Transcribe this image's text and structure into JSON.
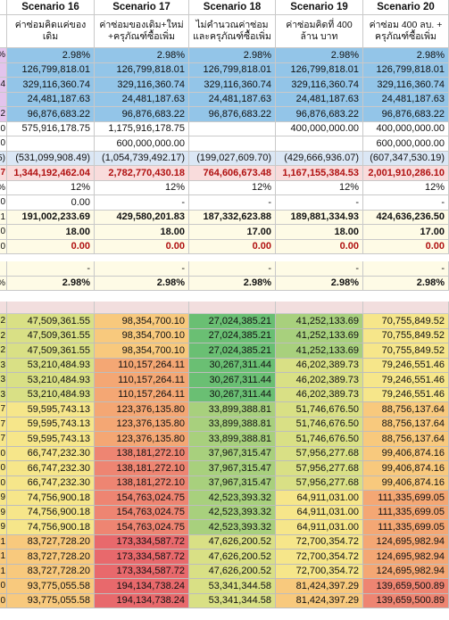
{
  "scenarios": [
    {
      "title": "Scenario 16",
      "subtitle": "ค่าซ่อมคิดแค่ของเดิม"
    },
    {
      "title": "Scenario 17",
      "subtitle": "ค่าซ่อมของเดิม+ใหม่ +ครุภัณฑ์ซื้อเพิ่ม"
    },
    {
      "title": "Scenario 18",
      "subtitle": "ไม่คำนวณค่าซ่อม และครุภัณฑ์ซื้อเพิ่ม"
    },
    {
      "title": "Scenario 19",
      "subtitle": "ค่าซ่อมคิดที่ 400 ล้าน บาท"
    },
    {
      "title": "Scenario 20",
      "subtitle": "ค่าซ่อม 400 ลบ. + ครุภัณฑ์ซื้อเพิ่ม"
    }
  ],
  "sections": {
    "blue": [
      {
        "edge": "%",
        "vals": [
          "2.98%",
          "2.98%",
          "2.98%",
          "2.98%",
          "2.98%"
        ]
      },
      {
        "edge": "",
        "vals": [
          "126,799,818.01",
          "126,799,818.01",
          "126,799,818.01",
          "126,799,818.01",
          "126,799,818.01"
        ]
      },
      {
        "edge": "4",
        "vals": [
          "329,116,360.74",
          "329,116,360.74",
          "329,116,360.74",
          "329,116,360.74",
          "329,116,360.74"
        ]
      },
      {
        "edge": "",
        "vals": [
          "24,481,187.63",
          "24,481,187.63",
          "24,481,187.63",
          "24,481,187.63",
          "24,481,187.63"
        ]
      },
      {
        "edge": "2",
        "vals": [
          "96,876,683.22",
          "96,876,683.22",
          "96,876,683.22",
          "96,876,683.22",
          "96,876,683.22"
        ]
      }
    ],
    "white": [
      {
        "edge": "0",
        "vals": [
          "575,916,178.75",
          "1,175,916,178.75",
          "",
          "400,000,000.00",
          "400,000,000.00"
        ]
      },
      {
        "edge": "0",
        "vals": [
          "",
          "600,000,000.00",
          "",
          "",
          "600,000,000.00"
        ]
      }
    ],
    "paleblue": {
      "edge": "5)",
      "vals": [
        "(531,099,908.49)",
        "(1,054,739,492.17)",
        "(199,027,609.70)",
        "(429,666,936.07)",
        "(607,347,530.19)"
      ]
    },
    "pink": {
      "edge": "7",
      "vals": [
        "1,344,192,462.04",
        "2,782,770,430.18",
        "764,606,673.48",
        "1,167,155,384.53",
        "2,001,910,286.10"
      ]
    },
    "percent12": {
      "edge": "%",
      "vals": [
        "12%",
        "12%",
        "12%",
        "12%",
        "12%"
      ]
    },
    "zero_row": {
      "edge": "0",
      "vals": [
        "0.00",
        "-",
        "-",
        "-",
        "-"
      ]
    },
    "cream": [
      {
        "edge": "1",
        "vals": [
          "191,002,233.69",
          "429,580,201.83",
          "187,332,623.88",
          "189,881,334.93",
          "424,636,236.50"
        ]
      },
      {
        "edge": "0",
        "vals": [
          "18.00",
          "18.00",
          "17.00",
          "18.00",
          "17.00"
        ]
      },
      {
        "edge": "0",
        "vals": [
          "0.00",
          "0.00",
          "0.00",
          "0.00",
          "0.00"
        ]
      },
      {
        "edge": "",
        "vals": [
          "-",
          "-",
          "-",
          "-",
          "-"
        ]
      },
      {
        "edge": "%",
        "vals": [
          "2.98%",
          "2.98%",
          "2.98%",
          "2.98%",
          "2.98%"
        ]
      }
    ]
  },
  "heatmap": {
    "colors": [
      "#6abf73",
      "#a8d07d",
      "#d9e085",
      "#f6e68a",
      "#f8c97d",
      "#f4a774",
      "#ee8572",
      "#e8696c"
    ],
    "rows": [
      {
        "edge": "2",
        "vals": [
          "47,509,361.55",
          "98,354,700.10",
          "27,024,385.21",
          "41,252,133.69",
          "70,755,849.52"
        ],
        "heat": [
          2,
          4,
          0,
          1,
          3
        ]
      },
      {
        "edge": "2",
        "vals": [
          "47,509,361.55",
          "98,354,700.10",
          "27,024,385.21",
          "41,252,133.69",
          "70,755,849.52"
        ],
        "heat": [
          2,
          4,
          0,
          1,
          3
        ]
      },
      {
        "edge": "2",
        "vals": [
          "47,509,361.55",
          "98,354,700.10",
          "27,024,385.21",
          "41,252,133.69",
          "70,755,849.52"
        ],
        "heat": [
          2,
          4,
          0,
          1,
          3
        ]
      },
      {
        "edge": "3",
        "vals": [
          "53,210,484.93",
          "110,157,264.11",
          "30,267,311.44",
          "46,202,389.73",
          "79,246,551.46"
        ],
        "heat": [
          2,
          5,
          0,
          2,
          3
        ]
      },
      {
        "edge": "3",
        "vals": [
          "53,210,484.93",
          "110,157,264.11",
          "30,267,311.44",
          "46,202,389.73",
          "79,246,551.46"
        ],
        "heat": [
          2,
          5,
          0,
          2,
          3
        ]
      },
      {
        "edge": "3",
        "vals": [
          "53,210,484.93",
          "110,157,264.11",
          "30,267,311.44",
          "46,202,389.73",
          "79,246,551.46"
        ],
        "heat": [
          2,
          5,
          0,
          2,
          3
        ]
      },
      {
        "edge": "7",
        "vals": [
          "59,595,743.13",
          "123,376,135.80",
          "33,899,388.81",
          "51,746,676.50",
          "88,756,137.64"
        ],
        "heat": [
          3,
          5,
          1,
          2,
          4
        ]
      },
      {
        "edge": "7",
        "vals": [
          "59,595,743.13",
          "123,376,135.80",
          "33,899,388.81",
          "51,746,676.50",
          "88,756,137.64"
        ],
        "heat": [
          3,
          5,
          1,
          2,
          4
        ]
      },
      {
        "edge": "7",
        "vals": [
          "59,595,743.13",
          "123,376,135.80",
          "33,899,388.81",
          "51,746,676.50",
          "88,756,137.64"
        ],
        "heat": [
          3,
          5,
          1,
          2,
          4
        ]
      },
      {
        "edge": "0",
        "vals": [
          "66,747,232.30",
          "138,181,272.10",
          "37,967,315.47",
          "57,956,277.68",
          "99,406,874.16"
        ],
        "heat": [
          3,
          6,
          1,
          2,
          4
        ]
      },
      {
        "edge": "0",
        "vals": [
          "66,747,232.30",
          "138,181,272.10",
          "37,967,315.47",
          "57,956,277.68",
          "99,406,874.16"
        ],
        "heat": [
          3,
          6,
          1,
          2,
          4
        ]
      },
      {
        "edge": "0",
        "vals": [
          "66,747,232.30",
          "138,181,272.10",
          "37,967,315.47",
          "57,956,277.68",
          "99,406,874.16"
        ],
        "heat": [
          3,
          6,
          1,
          2,
          4
        ]
      },
      {
        "edge": "9",
        "vals": [
          "74,756,900.18",
          "154,763,024.75",
          "42,523,393.32",
          "64,911,031.00",
          "111,335,699.05"
        ],
        "heat": [
          3,
          6,
          1,
          3,
          5
        ]
      },
      {
        "edge": "9",
        "vals": [
          "74,756,900.18",
          "154,763,024.75",
          "42,523,393.32",
          "64,911,031.00",
          "111,335,699.05"
        ],
        "heat": [
          3,
          6,
          1,
          3,
          5
        ]
      },
      {
        "edge": "9",
        "vals": [
          "74,756,900.18",
          "154,763,024.75",
          "42,523,393.32",
          "64,911,031.00",
          "111,335,699.05"
        ],
        "heat": [
          3,
          6,
          1,
          3,
          5
        ]
      },
      {
        "edge": "1",
        "vals": [
          "83,727,728.20",
          "173,334,587.72",
          "47,626,200.52",
          "72,700,354.72",
          "124,695,982.94"
        ],
        "heat": [
          4,
          7,
          2,
          3,
          5
        ]
      },
      {
        "edge": "1",
        "vals": [
          "83,727,728.20",
          "173,334,587.72",
          "47,626,200.52",
          "72,700,354.72",
          "124,695,982.94"
        ],
        "heat": [
          4,
          7,
          2,
          3,
          5
        ]
      },
      {
        "edge": "1",
        "vals": [
          "83,727,728.20",
          "173,334,587.72",
          "47,626,200.52",
          "72,700,354.72",
          "124,695,982.94"
        ],
        "heat": [
          4,
          7,
          2,
          3,
          5
        ]
      },
      {
        "edge": "0",
        "vals": [
          "93,775,055.58",
          "194,134,738.24",
          "53,341,344.58",
          "81,424,397.29",
          "139,659,500.89"
        ],
        "heat": [
          4,
          7,
          2,
          4,
          6
        ]
      },
      {
        "edge": "0",
        "vals": [
          "93,775,055.58",
          "194,134,738.24",
          "53,341,344.58",
          "81,424,397.29",
          "139,659,500.89"
        ],
        "heat": [
          4,
          7,
          2,
          4,
          6
        ]
      }
    ]
  }
}
